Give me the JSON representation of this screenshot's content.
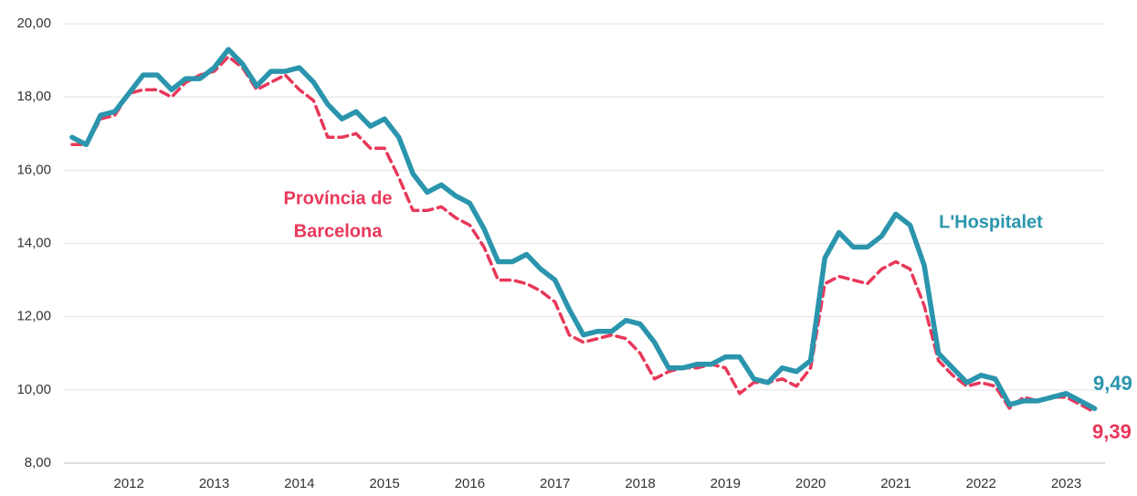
{
  "chart_data": {
    "type": "line",
    "categories": [
      null,
      null,
      null,
      null,
      "2012",
      null,
      null,
      null,
      null,
      null,
      "2013",
      null,
      null,
      null,
      null,
      null,
      "2014",
      null,
      null,
      null,
      null,
      null,
      "2015",
      null,
      null,
      null,
      null,
      null,
      "2016",
      null,
      null,
      null,
      null,
      null,
      "2017",
      null,
      null,
      null,
      null,
      null,
      "2018",
      null,
      null,
      null,
      null,
      null,
      "2019",
      null,
      null,
      null,
      null,
      null,
      "2020",
      null,
      null,
      null,
      null,
      null,
      "2021",
      null,
      null,
      null,
      null,
      null,
      "2022",
      null,
      null,
      null,
      null,
      null,
      "2023",
      null,
      null
    ],
    "series": [
      {
        "label": [
          "Província de",
          "Barcelona"
        ],
        "color": "#e8385a",
        "dashed": true,
        "values": [
          16.7,
          16.7,
          17.4,
          17.5,
          18.1,
          18.2,
          18.2,
          18.0,
          18.4,
          18.6,
          18.7,
          19.1,
          18.8,
          18.2,
          18.4,
          18.6,
          18.2,
          17.9,
          16.9,
          16.9,
          17.0,
          16.6,
          16.6,
          15.8,
          14.9,
          14.9,
          15.0,
          14.7,
          14.5,
          13.9,
          13.0,
          13.0,
          12.9,
          12.7,
          12.4,
          11.5,
          11.3,
          11.4,
          11.5,
          11.4,
          11.0,
          10.3,
          10.5,
          10.6,
          10.6,
          10.7,
          10.6,
          9.9,
          10.2,
          10.2,
          10.3,
          10.1,
          10.6,
          12.9,
          13.1,
          13.0,
          12.9,
          13.3,
          13.5,
          13.3,
          12.3,
          10.8,
          10.4,
          10.1,
          10.2,
          10.1,
          9.5,
          9.8,
          9.7,
          9.8,
          9.8,
          9.6,
          9.39
        ],
        "value_labels": [
          null,
          null,
          null,
          null,
          null,
          null,
          null,
          null,
          null,
          null,
          null,
          null,
          null,
          null,
          null,
          null,
          null,
          null,
          null,
          null,
          null,
          null,
          null,
          null,
          null,
          null,
          null,
          null,
          null,
          null,
          null,
          null,
          null,
          null,
          null,
          null,
          null,
          null,
          null,
          null,
          null,
          null,
          null,
          null,
          null,
          null,
          null,
          null,
          null,
          null,
          null,
          null,
          null,
          null,
          null,
          null,
          null,
          null,
          null,
          null,
          null,
          null,
          null,
          null,
          null,
          null,
          null,
          null,
          null,
          null,
          null,
          null,
          "9,39"
        ]
      },
      {
        "label": [
          "L'Hospitalet"
        ],
        "color": "#2a95ad",
        "dashed": false,
        "values": [
          16.9,
          16.7,
          17.5,
          17.6,
          18.1,
          18.6,
          18.6,
          18.2,
          18.5,
          18.5,
          18.8,
          19.3,
          18.9,
          18.3,
          18.7,
          18.7,
          18.8,
          18.4,
          17.8,
          17.4,
          17.6,
          17.2,
          17.4,
          16.9,
          15.9,
          15.4,
          15.6,
          15.3,
          15.1,
          14.4,
          13.5,
          13.5,
          13.7,
          13.3,
          13.0,
          12.2,
          11.5,
          11.6,
          11.6,
          11.9,
          11.8,
          11.3,
          10.6,
          10.6,
          10.7,
          10.7,
          10.9,
          10.9,
          10.3,
          10.2,
          10.6,
          10.5,
          10.8,
          13.6,
          14.3,
          13.9,
          13.9,
          14.2,
          14.8,
          14.5,
          13.4,
          11.0,
          10.6,
          10.2,
          10.4,
          10.3,
          9.6,
          9.7,
          9.7,
          9.8,
          9.9,
          9.7,
          9.49
        ],
        "value_labels": [
          null,
          null,
          null,
          null,
          null,
          null,
          null,
          null,
          null,
          null,
          null,
          null,
          null,
          null,
          null,
          null,
          null,
          null,
          null,
          null,
          null,
          null,
          null,
          null,
          null,
          null,
          null,
          null,
          null,
          null,
          null,
          null,
          null,
          null,
          null,
          null,
          null,
          null,
          null,
          null,
          null,
          null,
          null,
          null,
          null,
          null,
          null,
          null,
          null,
          null,
          null,
          null,
          null,
          null,
          null,
          null,
          null,
          null,
          null,
          null,
          null,
          null,
          null,
          null,
          null,
          null,
          null,
          null,
          null,
          null,
          null,
          null,
          "9,49"
        ]
      }
    ],
    "ylim": [
      8,
      20
    ],
    "yticks": [
      {
        "value": 8,
        "label": "8,00"
      },
      {
        "value": 10,
        "label": "10,00"
      },
      {
        "value": 12,
        "label": "12,00"
      },
      {
        "value": 14,
        "label": "14,00"
      },
      {
        "value": 16,
        "label": "16,00"
      },
      {
        "value": 18,
        "label": "18,00"
      },
      {
        "value": 20,
        "label": "20,00"
      }
    ],
    "grid": true
  }
}
